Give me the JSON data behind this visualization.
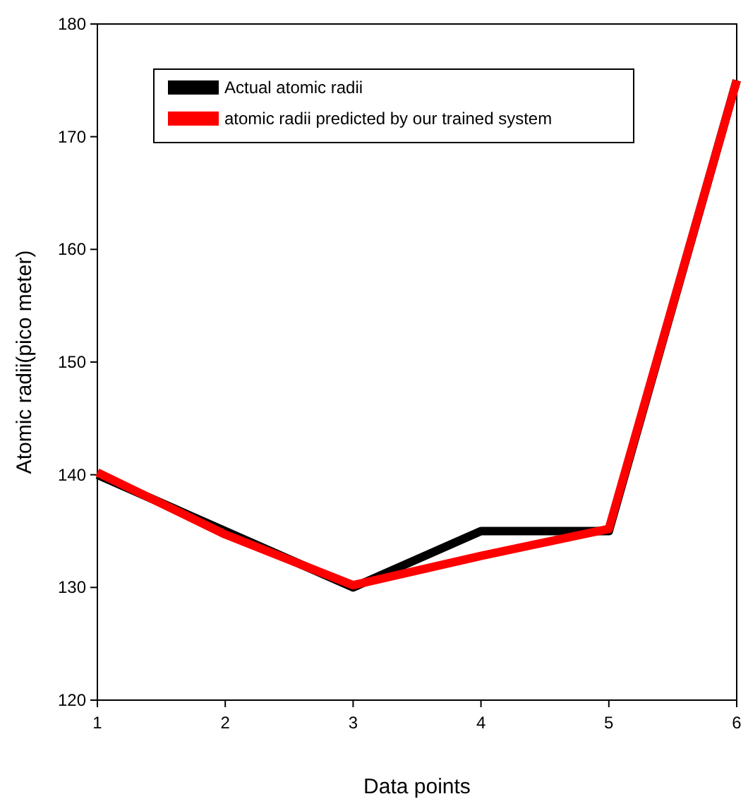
{
  "chart_data": {
    "type": "line",
    "xlabel": "Data points",
    "ylabel": "Atomic radii(pico meter)",
    "x": [
      1,
      2,
      3,
      4,
      5,
      6
    ],
    "xlim": [
      1,
      6
    ],
    "xticks": [
      1,
      2,
      3,
      4,
      5,
      6
    ],
    "ylim": [
      120,
      180
    ],
    "yticks": [
      120,
      130,
      140,
      150,
      160,
      170,
      180
    ],
    "series": [
      {
        "name": "Actual atomic radii",
        "color": "#000000",
        "values": [
          140,
          135,
          130,
          135,
          135,
          175
        ]
      },
      {
        "name": "atomic radii predicted by our trained system",
        "color": "#ff0000",
        "values": [
          140.2,
          134.7,
          130.2,
          132.8,
          135.2,
          175
        ]
      }
    ],
    "grid": false,
    "legend": "top left",
    "marker": "none",
    "line_style": "solid"
  }
}
